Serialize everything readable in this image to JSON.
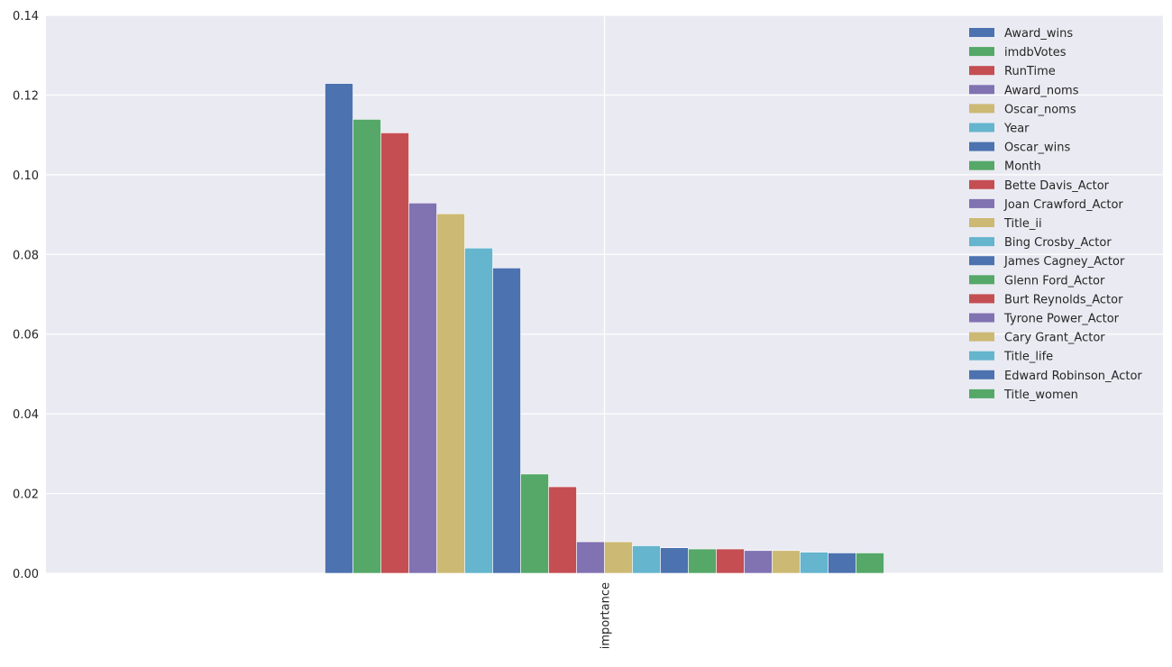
{
  "chart_data": {
    "type": "bar",
    "categories": [
      "importance"
    ],
    "xlabel": "",
    "ylabel": "",
    "ylim": [
      0,
      0.14
    ],
    "yticks": [
      "0.00",
      "0.02",
      "0.04",
      "0.06",
      "0.08",
      "0.10",
      "0.12",
      "0.14"
    ],
    "grid": true,
    "legend_position": "top-right",
    "palette": [
      "#4c72b0",
      "#55a868",
      "#c44e52",
      "#8172b2",
      "#ccb974",
      "#64b5cd"
    ],
    "series": [
      {
        "name": "Award_wins",
        "values": [
          0.1229
        ]
      },
      {
        "name": "imdbVotes",
        "values": [
          0.1139
        ]
      },
      {
        "name": "RunTime",
        "values": [
          0.1105
        ]
      },
      {
        "name": "Award_noms",
        "values": [
          0.0929
        ]
      },
      {
        "name": "Oscar_noms",
        "values": [
          0.0902
        ]
      },
      {
        "name": "Year",
        "values": [
          0.0816
        ]
      },
      {
        "name": "Oscar_wins",
        "values": [
          0.0766
        ]
      },
      {
        "name": "Month",
        "values": [
          0.0249
        ]
      },
      {
        "name": "Bette Davis_Actor",
        "values": [
          0.0217
        ]
      },
      {
        "name": "Joan Crawford_Actor",
        "values": [
          0.0079
        ]
      },
      {
        "name": "Title_ii",
        "values": [
          0.0079
        ]
      },
      {
        "name": "Bing Crosby_Actor",
        "values": [
          0.0069
        ]
      },
      {
        "name": "James Cagney_Actor",
        "values": [
          0.0064
        ]
      },
      {
        "name": "Glenn Ford_Actor",
        "values": [
          0.0061
        ]
      },
      {
        "name": "Burt Reynolds_Actor",
        "values": [
          0.0061
        ]
      },
      {
        "name": "Tyrone Power_Actor",
        "values": [
          0.0057
        ]
      },
      {
        "name": "Cary Grant_Actor",
        "values": [
          0.0057
        ]
      },
      {
        "name": "Title_life",
        "values": [
          0.0053
        ]
      },
      {
        "name": "Edward Robinson_Actor",
        "values": [
          0.0051
        ]
      },
      {
        "name": "Title_women",
        "values": [
          0.0051
        ]
      }
    ]
  }
}
